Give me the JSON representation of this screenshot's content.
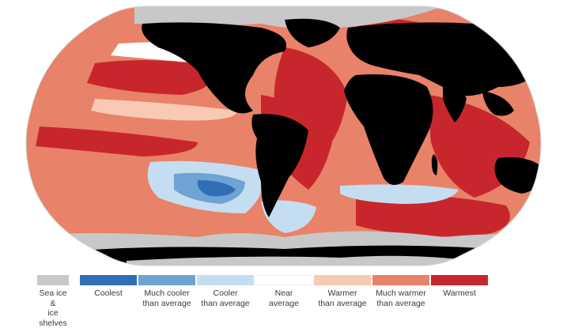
{
  "legend": {
    "items": [
      {
        "key": "sea-ice",
        "label": "Sea ice &\nice shelves",
        "color": "#c8c8c8"
      },
      {
        "key": "coolest",
        "label": "Coolest",
        "color": "#2f6fb5"
      },
      {
        "key": "much-cooler",
        "label": "Much cooler\nthan average",
        "color": "#6fa3d3"
      },
      {
        "key": "cooler",
        "label": "Cooler\nthan average",
        "color": "#c5ddf0"
      },
      {
        "key": "near",
        "label": "Near\naverage",
        "color": "#ffffff"
      },
      {
        "key": "warmer",
        "label": "Warmer\nthan average",
        "color": "#f8c9b3"
      },
      {
        "key": "much-warmer",
        "label": "Much warmer\nthan average",
        "color": "#e88268"
      },
      {
        "key": "warmest",
        "label": "Warmest",
        "color": "#c8262d"
      }
    ]
  },
  "colors": {
    "land": "#000000",
    "ocean_base": "#e88268"
  }
}
